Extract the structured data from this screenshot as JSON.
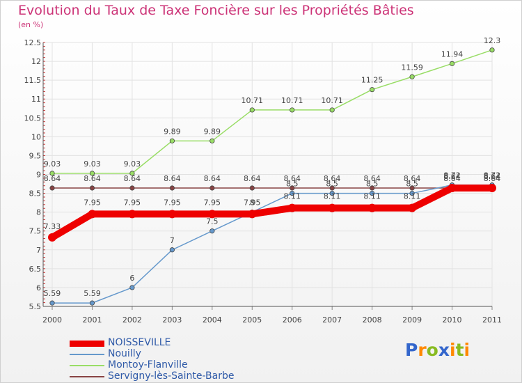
{
  "header": {
    "title": "Evolution du Taux de Taxe Foncière sur les Propriétés Bâties",
    "subtitle": "(en %)"
  },
  "chart_data": {
    "type": "line",
    "title": "Evolution du Taux de Taxe Foncière sur les Propriétés Bâties",
    "ylabel": "(en %)",
    "xlabel": "",
    "x": [
      "2000",
      "2001",
      "2002",
      "2003",
      "2004",
      "2005",
      "2006",
      "2007",
      "2008",
      "2009",
      "2010",
      "2011"
    ],
    "ylim": [
      5.5,
      12.5
    ],
    "yticks": [
      "5.5",
      "6",
      "6.5",
      "7",
      "7.5",
      "8",
      "8.5",
      "9",
      "9.5",
      "10",
      "10.5",
      "11",
      "11.5",
      "12",
      "12.5"
    ],
    "series": [
      {
        "name": "NOISSEVILLE",
        "color": "#ee0000",
        "values": [
          7.33,
          7.95,
          7.95,
          7.95,
          7.95,
          7.95,
          8.11,
          8.11,
          8.11,
          8.11,
          8.64,
          8.64
        ],
        "labels": [
          "7.33",
          "7.95",
          "7.95",
          "7.95",
          "7.95",
          "7.95",
          "8.11",
          "8.11",
          "8.11",
          "8.11",
          "8.64",
          "8.64"
        ]
      },
      {
        "name": "Nouilly",
        "color": "#6699cc",
        "values": [
          5.59,
          5.59,
          6,
          7,
          7.5,
          8,
          8.5,
          8.5,
          8.5,
          8.5,
          8.72,
          8.72
        ],
        "labels": [
          "5.59",
          "5.59",
          "6",
          "7",
          "7.5",
          "8",
          "8.5",
          "8.5",
          "8.5",
          "8.5",
          "8.72",
          "8.72"
        ]
      },
      {
        "name": "Montoy-Flanville",
        "color": "#99dd66",
        "values": [
          9.03,
          9.03,
          9.03,
          9.89,
          9.89,
          10.71,
          10.71,
          10.71,
          11.25,
          11.59,
          11.94,
          12.3
        ],
        "labels": [
          "9.03",
          "9.03",
          "9.03",
          "9.89",
          "9.89",
          "10.71",
          "10.71",
          "10.71",
          "11.25",
          "11.59",
          "11.94",
          "12.3"
        ]
      },
      {
        "name": "Servigny-lès-Sainte-Barbe",
        "color": "#884444",
        "values": [
          8.64,
          8.64,
          8.64,
          8.64,
          8.64,
          8.64,
          8.64,
          8.64,
          8.64,
          8.64,
          8.64,
          8.64
        ],
        "labels": [
          "8.64",
          "8.64",
          "8.64",
          "8.64",
          "8.64",
          "8.64",
          "8.64",
          "8.64",
          "8.64",
          "8.64",
          "8.64",
          "8.64"
        ]
      }
    ]
  },
  "legend": {
    "items": [
      {
        "name": "NOISSEVILLE",
        "color": "#ee0000"
      },
      {
        "name": "Nouilly",
        "color": "#6699cc"
      },
      {
        "name": "Montoy-Flanville",
        "color": "#99dd66"
      },
      {
        "name": "Servigny-lès-Sainte-Barbe",
        "color": "#884444"
      }
    ]
  },
  "logo": {
    "text": "Proxiti",
    "letters": [
      {
        "ch": "P",
        "color": "#3366cc"
      },
      {
        "ch": "r",
        "color": "#ff8800"
      },
      {
        "ch": "o",
        "color": "#88bb22"
      },
      {
        "ch": "x",
        "color": "#3366cc"
      },
      {
        "ch": "i",
        "color": "#ff8800"
      },
      {
        "ch": "t",
        "color": "#88bb22"
      },
      {
        "ch": "i",
        "color": "#ff8800"
      }
    ]
  }
}
